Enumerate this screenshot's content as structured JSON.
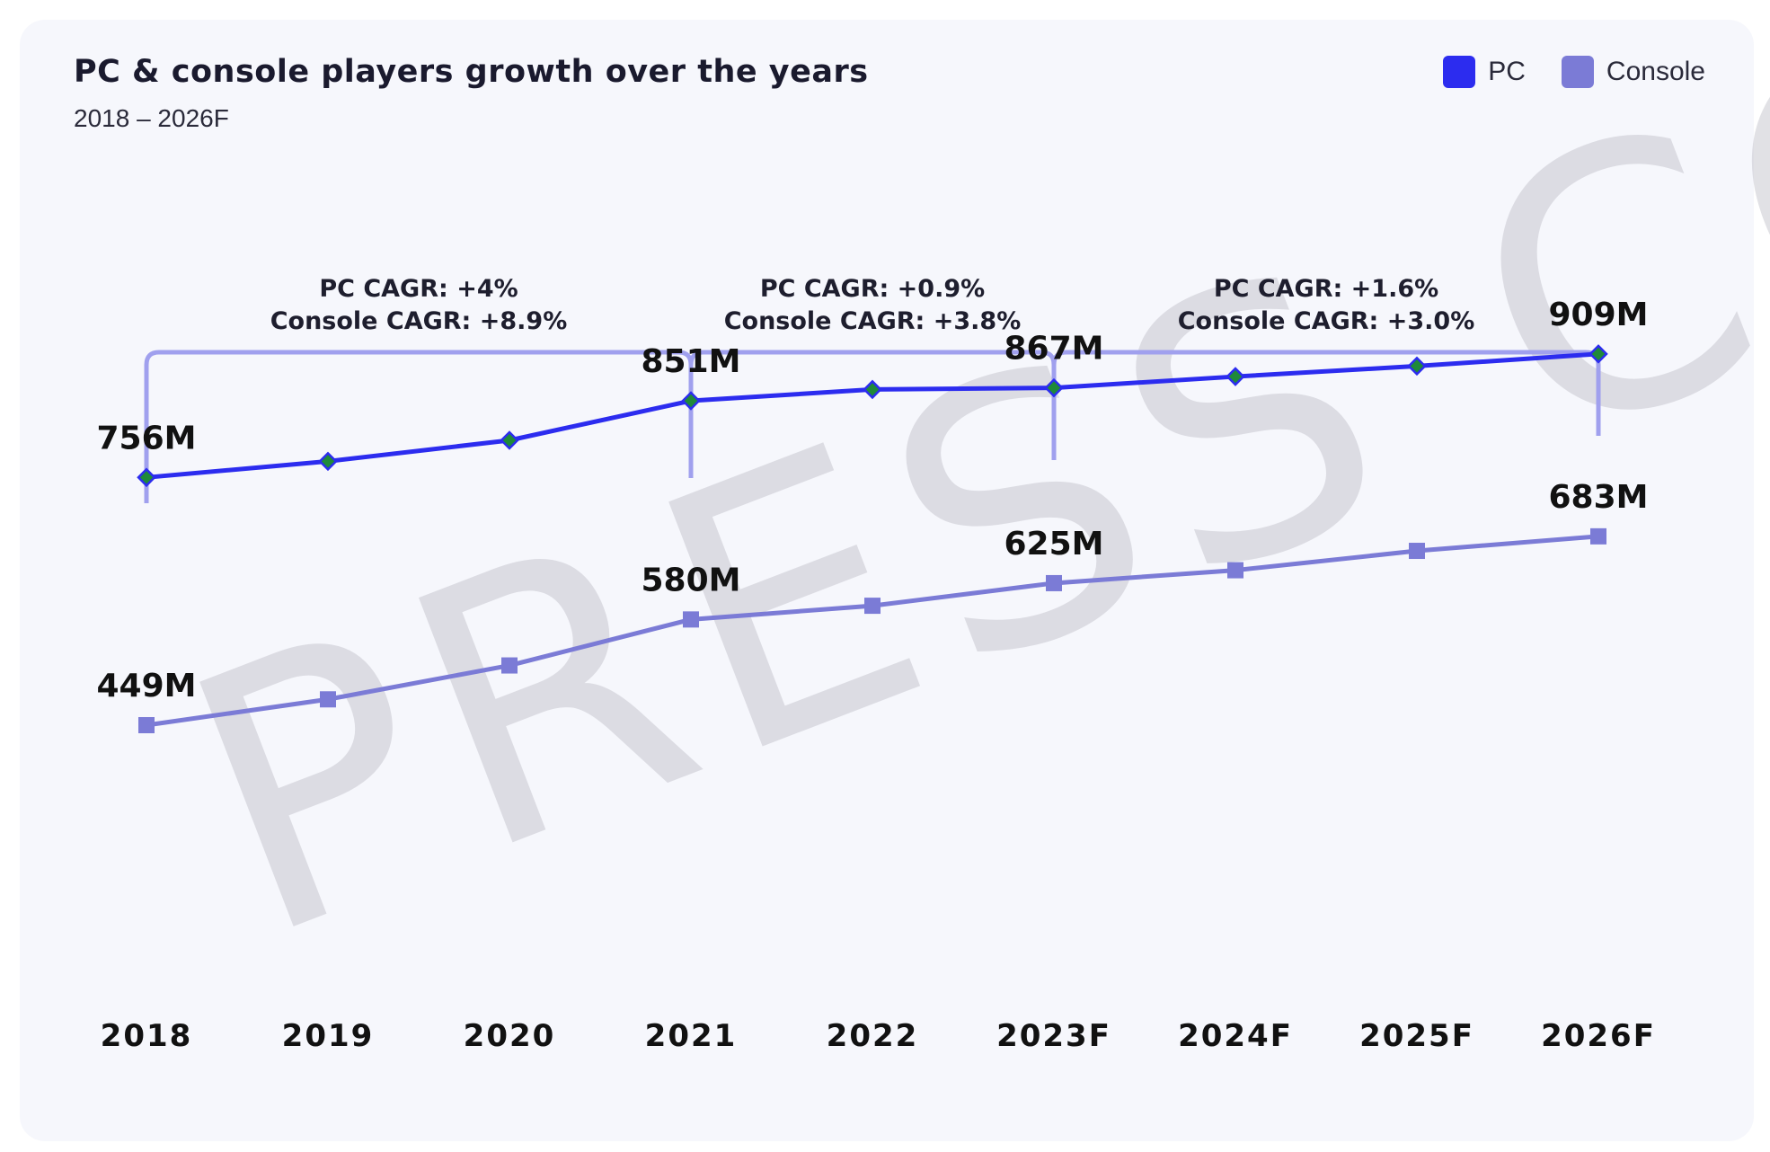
{
  "header": {
    "title": "PC & console players growth over the years",
    "subtitle": "2018 – 2026F"
  },
  "legend": [
    {
      "label": "PC",
      "color": "#2c2cef"
    },
    {
      "label": "Console",
      "color": "#7b7bd6"
    }
  ],
  "watermark": "PRESS CO",
  "chart_data": {
    "type": "line",
    "title": "PC & console players growth over the years",
    "subtitle": "2018 – 2026F",
    "categories": [
      "2018",
      "2019",
      "2020",
      "2021",
      "2022",
      "2023F",
      "2024F",
      "2025F",
      "2026F"
    ],
    "series": [
      {
        "name": "PC",
        "color": "#2c2cef",
        "marker": "diamond",
        "marker_color": "#1f8a3a",
        "values": [
          756,
          776,
          802,
          851,
          865,
          867,
          881,
          894,
          909
        ]
      },
      {
        "name": "Console",
        "color": "#7b7bd6",
        "marker": "square",
        "values": [
          449,
          481,
          523,
          580,
          597,
          625,
          641,
          665,
          683
        ]
      }
    ],
    "data_labels": [
      {
        "series": "PC",
        "category": "2018",
        "text": "756M"
      },
      {
        "series": "PC",
        "category": "2021",
        "text": "851M"
      },
      {
        "series": "PC",
        "category": "2023F",
        "text": "867M"
      },
      {
        "series": "PC",
        "category": "2026F",
        "text": "909M"
      },
      {
        "series": "Console",
        "category": "2018",
        "text": "449M"
      },
      {
        "series": "Console",
        "category": "2021",
        "text": "580M"
      },
      {
        "series": "Console",
        "category": "2023F",
        "text": "625M"
      },
      {
        "series": "Console",
        "category": "2026F",
        "text": "683M"
      }
    ],
    "annotations": [
      {
        "from": "2018",
        "to": "2021",
        "line1": "PC CAGR: +4%",
        "line2": "Console CAGR: +8.9%"
      },
      {
        "from": "2021",
        "to": "2023F",
        "line1": "PC CAGR: +0.9%",
        "line2": "Console CAGR: +3.8%"
      },
      {
        "from": "2023F",
        "to": "2026F",
        "line1": "PC CAGR: +1.6%",
        "line2": "Console CAGR: +3.0%"
      }
    ],
    "unit": "M",
    "ylim": [
      0,
      1000
    ],
    "grid": false,
    "legend_position": "top-right",
    "bracket_color": "#a0a0ee"
  }
}
